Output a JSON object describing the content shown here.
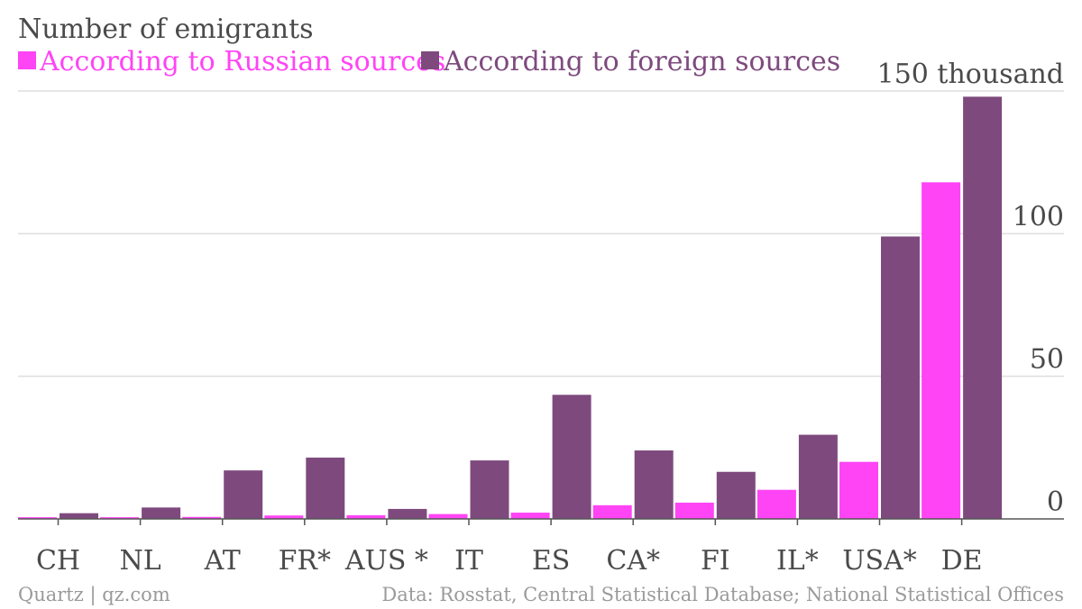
{
  "chart_data": {
    "type": "bar",
    "title": "Number of emigrants",
    "categories": [
      "CH",
      "NL",
      "AT",
      "FR*",
      "AUS *",
      "IT",
      "ES",
      "CA*",
      "FI",
      "IL*",
      "USA*",
      "DE"
    ],
    "series": [
      {
        "name": "According to Russian sources",
        "color": "#ff44f5",
        "values": [
          0.6,
          0.6,
          0.7,
          1.2,
          1.3,
          1.7,
          2.2,
          4.8,
          5.7,
          10.2,
          20.0,
          118
        ]
      },
      {
        "name": "According to foreign sources",
        "color": "#7e4a7e",
        "values": [
          2.0,
          4.0,
          17.0,
          21.5,
          3.5,
          20.5,
          43.5,
          24.0,
          16.5,
          29.5,
          99.0,
          148
        ]
      }
    ],
    "y_ticks": [
      {
        "value": 0,
        "label": "0"
      },
      {
        "value": 50,
        "label": "50"
      },
      {
        "value": 100,
        "label": "100"
      },
      {
        "value": 150,
        "label": "150 thousand"
      }
    ],
    "ylim": [
      0,
      150
    ],
    "grid": true,
    "legend_position": "top-left"
  },
  "footer": {
    "left": "Quartz | qz.com",
    "right": "Data: Rosstat, Central Statistical Database; National Statistical Offices"
  }
}
